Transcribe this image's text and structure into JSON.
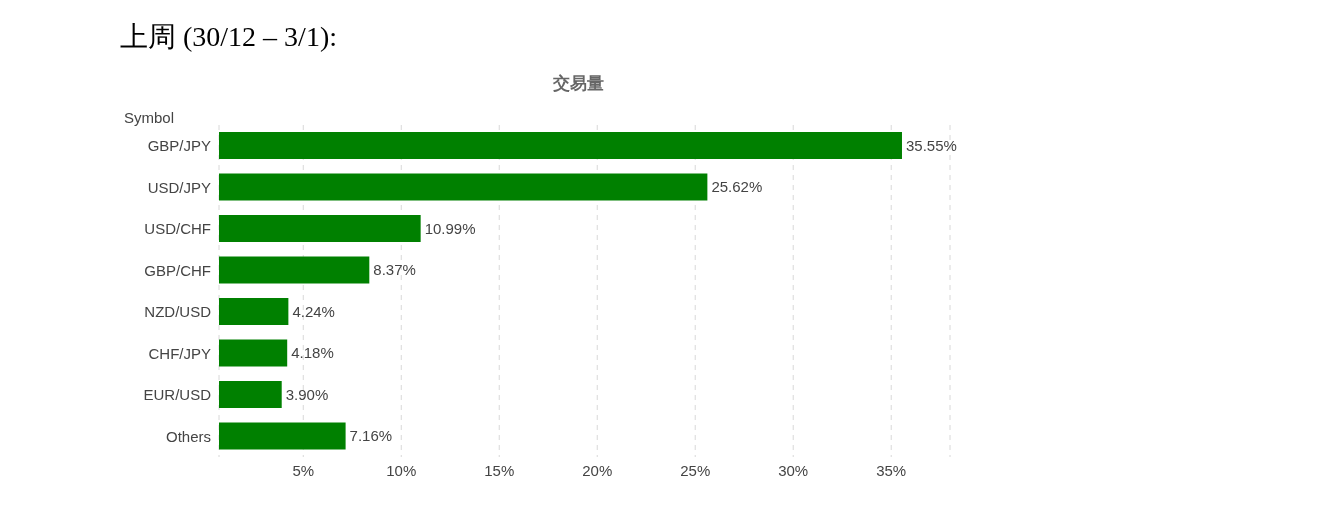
{
  "chart_data": {
    "type": "bar",
    "orientation": "horizontal",
    "title": "上周 (30/12 – 3/1):",
    "subtitle": "交易量",
    "ylabel": "Symbol",
    "categories": [
      "GBP/JPY",
      "USD/JPY",
      "USD/CHF",
      "GBP/CHF",
      "NZD/USD",
      "CHF/JPY",
      "EUR/USD",
      "Others"
    ],
    "values": [
      35.55,
      25.62,
      10.99,
      8.37,
      4.24,
      4.18,
      3.9,
      7.16
    ],
    "value_labels": [
      "35.55%",
      "25.62%",
      "10.99%",
      "8.37%",
      "4.24%",
      "4.18%",
      "3.90%",
      "7.16%"
    ],
    "color": "#008000",
    "xlim": [
      0.7,
      38
    ],
    "xticks": [
      {
        "value": 5,
        "label": "5%"
      },
      {
        "value": 10,
        "label": "10%"
      },
      {
        "value": 15,
        "label": "15%"
      },
      {
        "value": 20,
        "label": "20%"
      },
      {
        "value": 25,
        "label": "25%"
      },
      {
        "value": 30,
        "label": "30%"
      },
      {
        "value": 35,
        "label": "35%"
      }
    ],
    "grid": "x",
    "legend": false
  }
}
